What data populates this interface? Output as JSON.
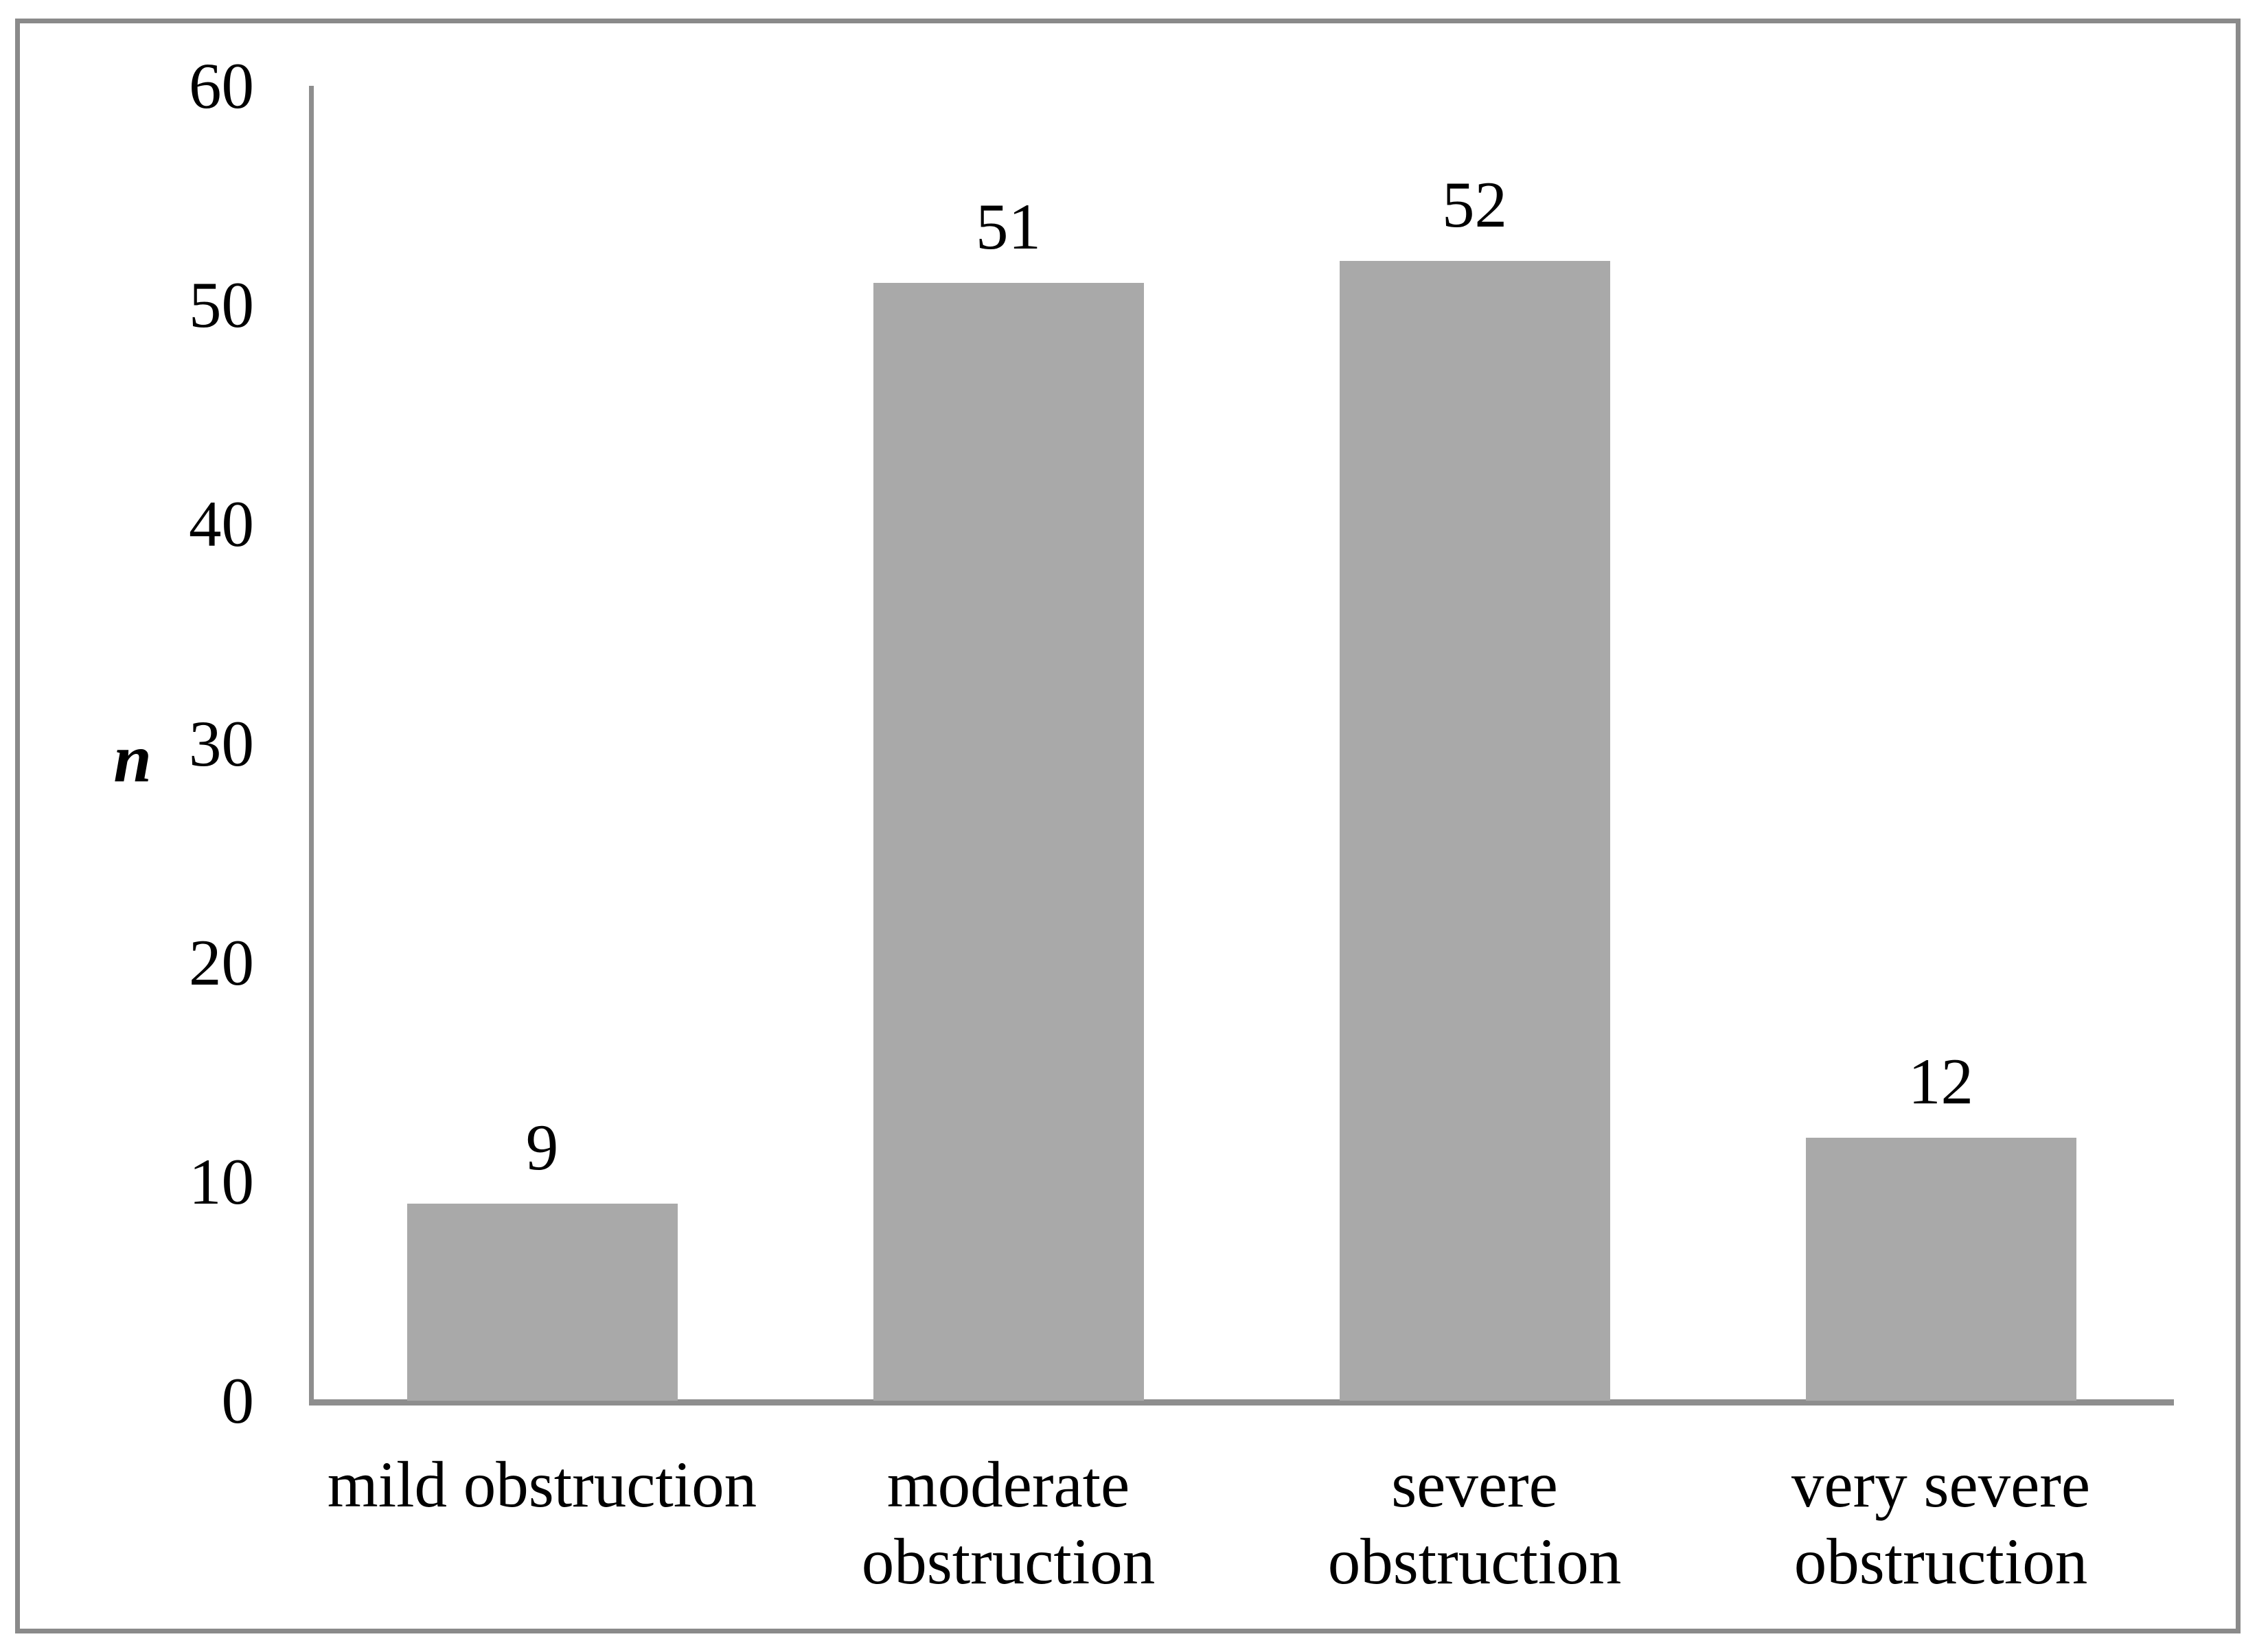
{
  "figure": {
    "background_color": "#ffffff",
    "border_color": "#8a8a8a"
  },
  "chart_data": {
    "type": "bar",
    "title": "",
    "categories": [
      "mild obstruction",
      "moderate\nobstruction",
      "severe obstruction",
      "very severe\nobstruction"
    ],
    "values": [
      9,
      51,
      52,
      12
    ],
    "value_labels": [
      "9",
      "51",
      "52",
      "12"
    ],
    "xlabel": "",
    "ylabel": "n",
    "ylim": [
      0,
      60
    ],
    "yticks": [
      0,
      10,
      20,
      30,
      40,
      50,
      60
    ],
    "grid": false,
    "legend": "none",
    "bar_color": "#a9a9a9",
    "axis_color": "#8e8e8e",
    "text_color": "#000000"
  }
}
